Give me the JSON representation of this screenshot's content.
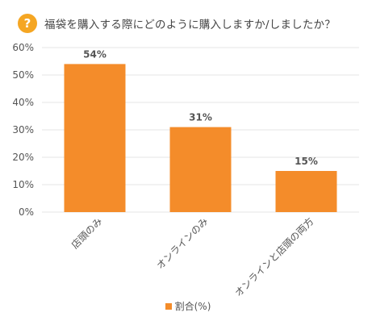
{
  "question_mark": "?",
  "title": "福袋を購入する際にどのように購入しますか/しましたか？",
  "colors": {
    "accent": "#f5a623",
    "bar": "#f48c2a",
    "grid": "#e6e6e6",
    "axis_text": "#555555"
  },
  "chart_data": {
    "type": "bar",
    "categories": [
      "店頭のみ",
      "オンラインのみ",
      "オンラインと店頭の両方"
    ],
    "series": [
      {
        "name": "割合(%)",
        "values": [
          54,
          31,
          15
        ]
      }
    ],
    "data_labels": [
      "54%",
      "31%",
      "15%"
    ],
    "y_ticks": [
      "0%",
      "10%",
      "20%",
      "30%",
      "40%",
      "50%",
      "60%"
    ],
    "ylim": [
      0,
      60
    ],
    "grid": true,
    "legend_position": "bottom",
    "title": "福袋を購入する際にどのように購入しますか/しましたか？",
    "xlabel": "",
    "ylabel": ""
  },
  "legend": {
    "label": "割合(%)"
  }
}
